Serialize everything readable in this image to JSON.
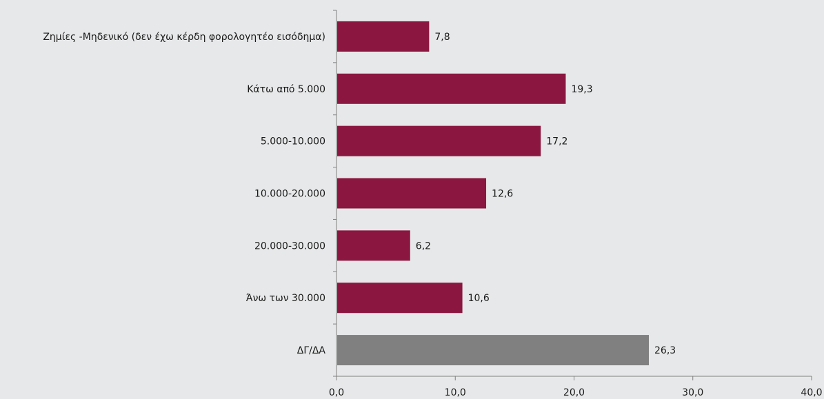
{
  "chart_data": {
    "type": "bar",
    "orientation": "horizontal",
    "categories": [
      "Ζημίες -Μηδενικό (δεν έχω κέρδη φορολογητέο εισόδημα)",
      "Κάτω από 5.000",
      "5.000-10.000",
      "10.000-20.000",
      "20.000-30.000",
      "Άνω των 30.000",
      "ΔΓ/ΔΑ"
    ],
    "values": [
      7.8,
      19.3,
      17.2,
      12.6,
      6.2,
      10.6,
      26.3
    ],
    "value_labels": [
      "7,8",
      "19,3",
      "17,2",
      "12,6",
      "6,2",
      "10,6",
      "26,3"
    ],
    "xlim": [
      0,
      40
    ],
    "xticks": [
      0,
      10,
      20,
      30,
      40
    ],
    "xtick_labels": [
      "0,0",
      "10,0",
      "20,0",
      "30,0",
      "40,0"
    ],
    "title": "",
    "xlabel": "",
    "ylabel": "",
    "grid": false,
    "legend": false,
    "colors": {
      "bar": "#8b1740",
      "bar_dont_know": "#808080",
      "axis": "#7f7f7f",
      "background": "#e7e8e9"
    }
  }
}
